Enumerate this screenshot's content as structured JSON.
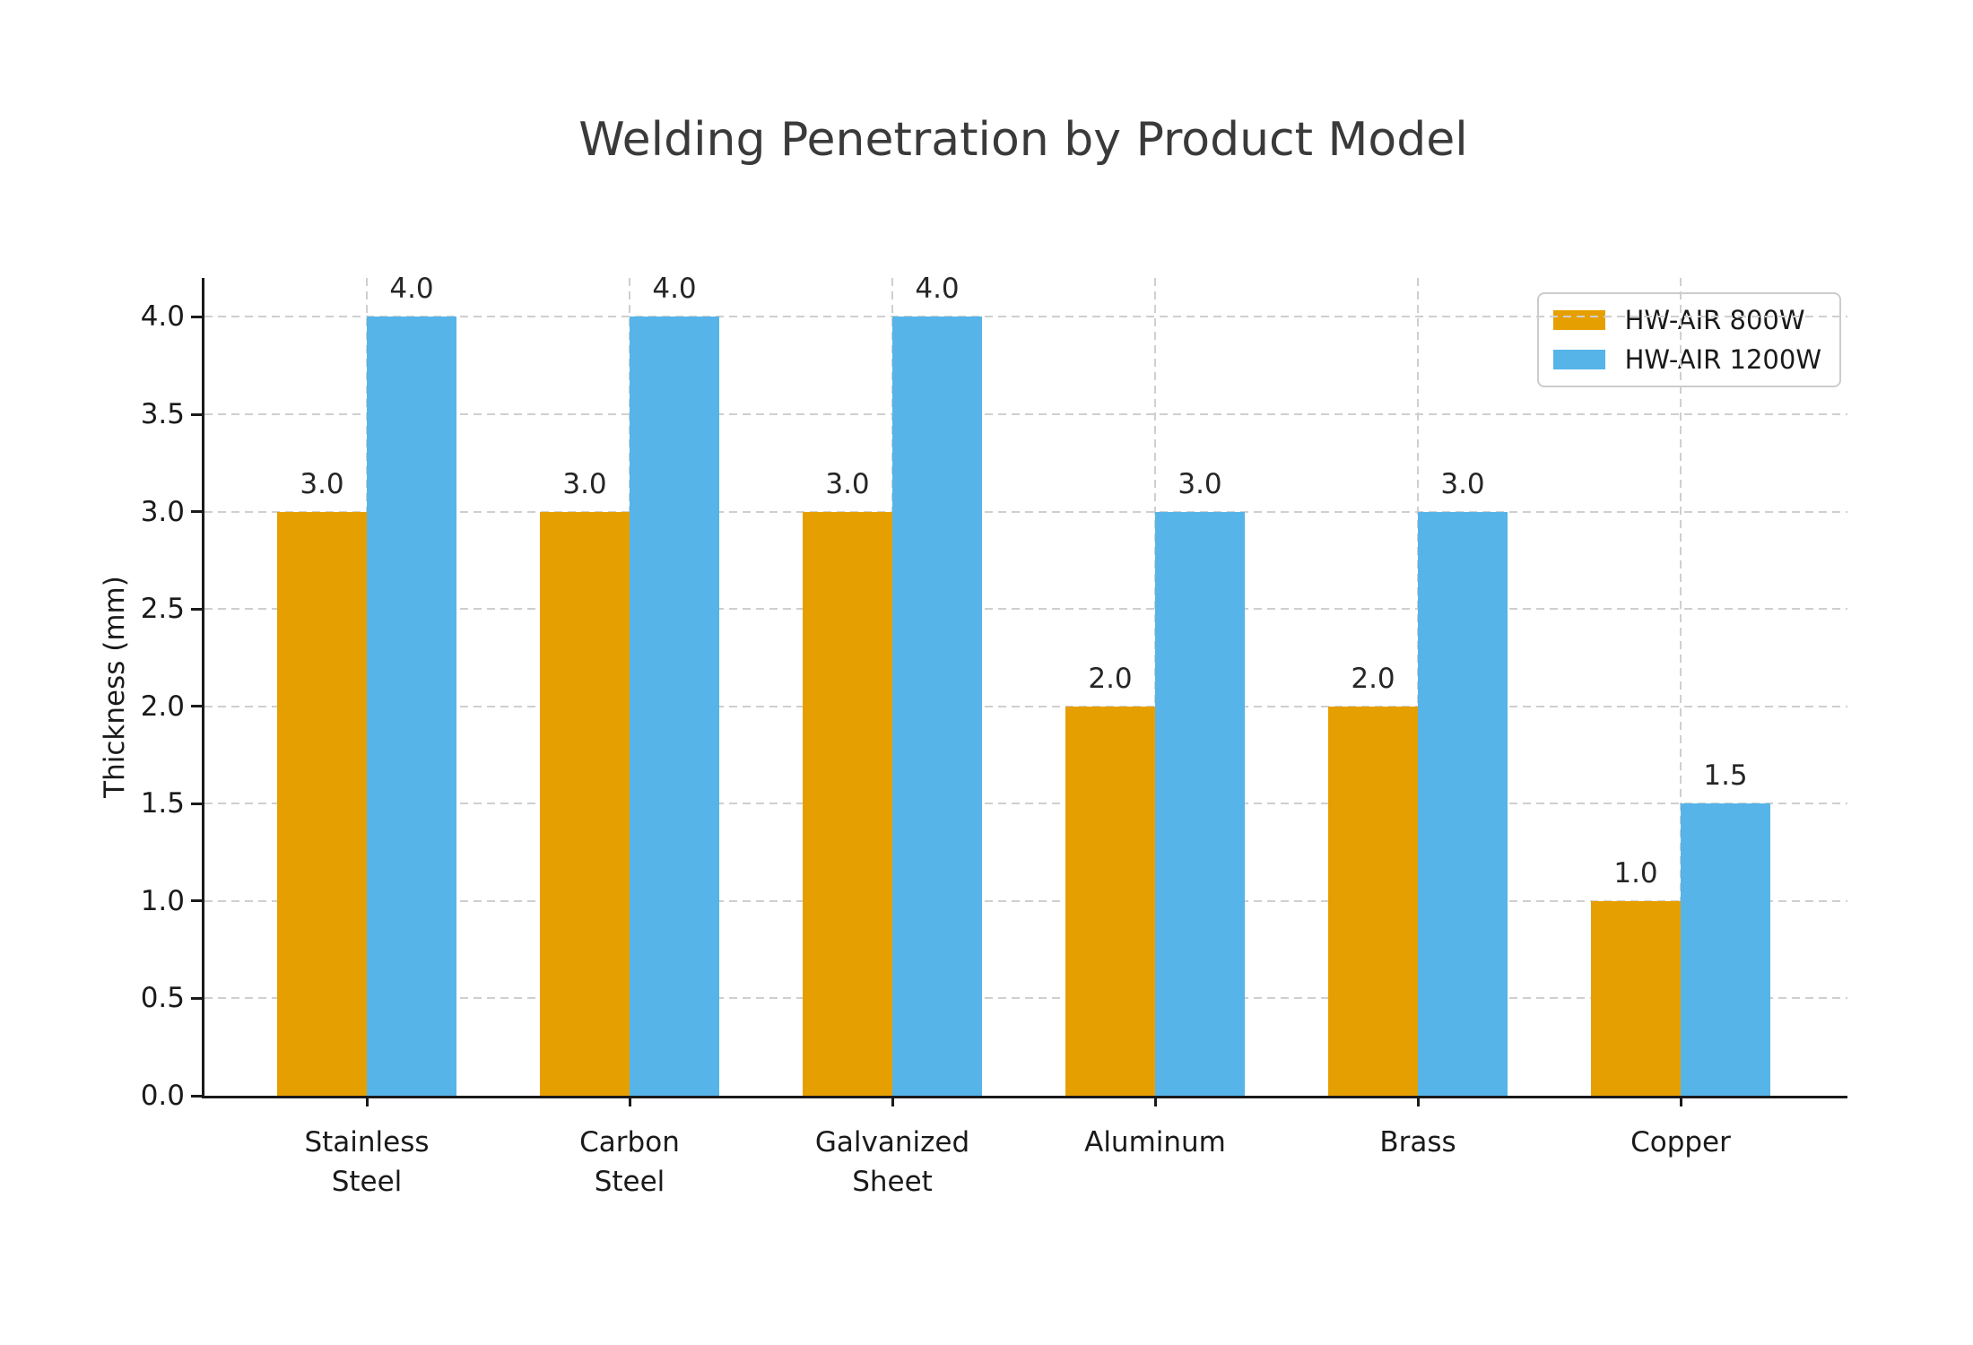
{
  "figure": {
    "background": "#ffffff"
  },
  "chart_data": {
    "type": "bar",
    "title": "Welding Penetration by Product Model",
    "xlabel": "",
    "ylabel": "Thickness (mm)",
    "categories": [
      "Stainless\nSteel",
      "Carbon\nSteel",
      "Galvanized\nSheet",
      "Aluminum",
      "Brass",
      "Copper"
    ],
    "series": [
      {
        "name": "HW-AIR 800W",
        "color": "#E69F00",
        "values": [
          3.0,
          3.0,
          3.0,
          2.0,
          2.0,
          1.0
        ]
      },
      {
        "name": "HW-AIR 1200W",
        "color": "#56B4E9",
        "values": [
          4.0,
          4.0,
          4.0,
          3.0,
          3.0,
          1.5
        ]
      }
    ],
    "bar_value_labels": [
      [
        "3.0",
        "3.0",
        "3.0",
        "2.0",
        "2.0",
        "1.0"
      ],
      [
        "4.0",
        "4.0",
        "4.0",
        "3.0",
        "3.0",
        "1.5"
      ]
    ],
    "yticks": [
      0.0,
      0.5,
      1.0,
      1.5,
      2.0,
      2.5,
      3.0,
      3.5,
      4.0
    ],
    "ytick_labels": [
      "0.0",
      "0.5",
      "1.0",
      "1.5",
      "2.0",
      "2.5",
      "3.0",
      "3.5",
      "4.0"
    ],
    "ylim": [
      0,
      4.2
    ],
    "grid": {
      "horizontal": true,
      "vertical": true,
      "style": "dashed",
      "color": "#cfcfcf"
    },
    "legend": {
      "position": "upper right",
      "entries": [
        "HW-AIR 800W",
        "HW-AIR 1200W"
      ]
    }
  }
}
